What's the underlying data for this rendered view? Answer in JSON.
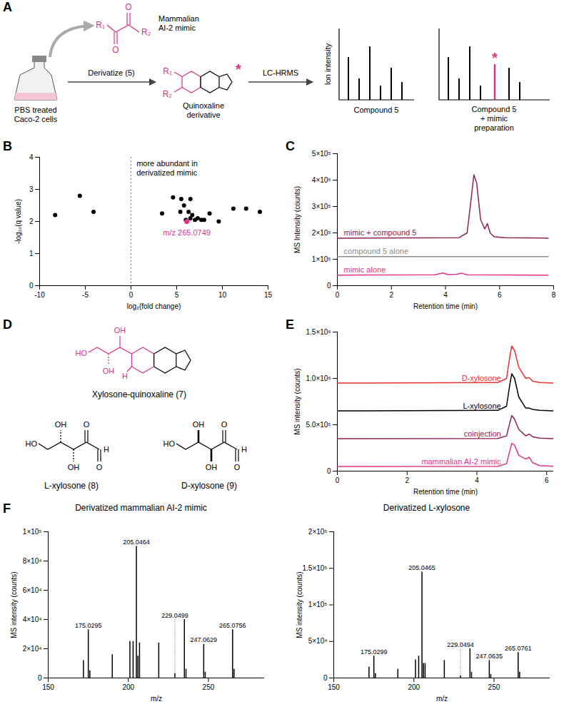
{
  "figure": {
    "schematic": {
      "panel": "A",
      "cells_label": "PBS treated Caco-2 cells",
      "mimic_label": "Mammalian AI-2 mimic",
      "mimic_groups": [
        "R₁",
        "R₂",
        "O",
        "O"
      ],
      "step1": "Derivatize (5)",
      "product_groups": [
        "R₁",
        "R₂"
      ],
      "product_mark": "*",
      "product_label": "Quinoxaline derivative",
      "step2": "LC-HRMS",
      "y_label": "Ion intensity",
      "spectrum1_label": "Compound 5",
      "spectrum2_label": "Compound 5 + mimic preparation",
      "spectrum2_mark": "*"
    },
    "structures": {
      "panel": "D",
      "molecules": [
        {
          "name": "Xylosone-quinoxaline (7)",
          "atom_labels": [
            "HO",
            "OH",
            "OH",
            "H"
          ]
        },
        {
          "name": "L-xylosone (8)",
          "atom_labels": [
            "HO",
            "OH",
            "OH",
            "O",
            "O",
            "H"
          ]
        },
        {
          "name": "D-xylosone (9)",
          "atom_labels": [
            "HO",
            "OH",
            "OH",
            "O",
            "O",
            "H"
          ]
        }
      ]
    }
  },
  "chart_data": [
    {
      "panel": "B",
      "type": "scatter",
      "x_label": "log₂(fold change)",
      "y_label": "-log₁₀(q value)",
      "xlim": [
        -10,
        15
      ],
      "ylim": [
        0,
        4
      ],
      "xticks": [
        -10,
        -5,
        0,
        5,
        10,
        15
      ],
      "yticks": [
        0,
        1,
        2,
        3,
        4
      ],
      "color": "#000000",
      "x": [
        -8.3,
        -5.6,
        -4.1,
        3.4,
        4.6,
        5.4,
        5.5,
        5.8,
        6.0,
        6.1,
        6.3,
        6.5,
        6.5,
        6.7,
        7.0,
        7.3,
        7.7,
        8.0,
        8.6,
        9.6,
        11.2,
        12.6,
        14.1
      ],
      "values": [
        2.2,
        2.8,
        2.3,
        2.25,
        2.75,
        2.3,
        2.7,
        2.5,
        2.05,
        2.0,
        2.3,
        2.1,
        2.7,
        2.2,
        2.05,
        2.1,
        2.05,
        2.05,
        2.25,
        2.0,
        2.4,
        2.4,
        2.3
      ],
      "vline": {
        "x": 0,
        "line_style": "dotted"
      },
      "annotation": {
        "text": "more abundant in derivatized mimic",
        "x": 0.6,
        "y": 3.8
      },
      "highlight": {
        "x": 6.1,
        "y": 2.0,
        "label": "m/z 265.0749",
        "color": "#e0338a"
      }
    },
    {
      "panel": "C",
      "type": "line",
      "x_label": "Retention time (min)",
      "y_label": "MS Intensity (counts)",
      "xlim": [
        0,
        8
      ],
      "ylim": [
        0,
        500000
      ],
      "xticks": [
        0,
        2,
        4,
        6,
        8
      ],
      "yticks": [
        0,
        {
          "value": 100000,
          "label": "1×10⁵"
        },
        {
          "value": 200000,
          "label": "2×10⁵"
        },
        {
          "value": 300000,
          "label": "3×10⁵"
        },
        {
          "value": 400000,
          "label": "4×10⁵"
        },
        {
          "value": 500000,
          "label": "5×10⁵"
        }
      ],
      "series": [
        {
          "name": "mimic + compound 5",
          "color": "#8b2252",
          "x": [
            0,
            4.5,
            4.8,
            4.95,
            5.05,
            5.15,
            5.3,
            5.45,
            5.55,
            5.65,
            5.8,
            6.2,
            7.8
          ],
          "values": [
            180000,
            182000,
            200000,
            330000,
            420000,
            390000,
            250000,
            215000,
            235000,
            200000,
            185000,
            182000,
            180000
          ]
        },
        {
          "name": "compound 5 alone",
          "color": "#8c8c8c",
          "x": [
            0,
            7.8
          ],
          "values": [
            110000,
            110000
          ]
        },
        {
          "name": "mimic alone",
          "color": "#e0338a",
          "x": [
            0,
            3.6,
            3.9,
            4.1,
            4.4,
            4.6,
            4.8,
            7.8
          ],
          "values": [
            40000,
            41000,
            48000,
            42000,
            43000,
            47000,
            41000,
            40000
          ]
        }
      ]
    },
    {
      "panel": "E",
      "type": "line",
      "x_label": "Retention time (min)",
      "y_label": "MS intensity (counts)",
      "xlim": [
        0,
        6.2
      ],
      "ylim": [
        0,
        1500000
      ],
      "xticks": [
        0,
        2,
        4,
        6
      ],
      "yticks": [
        0,
        {
          "value": 500000,
          "label": "5.0×10⁵"
        },
        {
          "value": 1000000,
          "label": "1.0×10⁶"
        },
        {
          "value": 1500000,
          "label": "1.5×10⁶"
        }
      ],
      "series": [
        {
          "name": "D-xylosone",
          "color": "#e8312f",
          "x": [
            0,
            4.6,
            4.85,
            4.95,
            5.0,
            5.08,
            5.2,
            5.4,
            5.5,
            5.6,
            5.8,
            6.2
          ],
          "values": [
            950000,
            955000,
            1000000,
            1250000,
            1350000,
            1300000,
            1120000,
            1000000,
            1010000,
            970000,
            955000,
            950000
          ]
        },
        {
          "name": "L-xylosone",
          "color": "#000000",
          "x": [
            0,
            4.6,
            4.85,
            4.95,
            5.0,
            5.08,
            5.2,
            5.4,
            5.5,
            5.6,
            5.8,
            6.2
          ],
          "values": [
            650000,
            655000,
            700000,
            950000,
            1050000,
            1000000,
            800000,
            680000,
            680000,
            665000,
            655000,
            650000
          ]
        },
        {
          "name": "coinjection",
          "color": "#8b2252",
          "x": [
            0,
            4.6,
            4.85,
            4.95,
            5.0,
            5.08,
            5.2,
            5.4,
            5.5,
            5.6,
            5.8,
            6.2
          ],
          "values": [
            350000,
            352000,
            380000,
            530000,
            600000,
            560000,
            450000,
            380000,
            400000,
            370000,
            355000,
            350000
          ]
        },
        {
          "name": "mammalian AI-2 mimic",
          "color": "#e0338a",
          "x": [
            0,
            4.6,
            4.85,
            4.95,
            5.0,
            5.08,
            5.2,
            5.4,
            5.5,
            5.6,
            5.8,
            6.2
          ],
          "values": [
            50000,
            52000,
            80000,
            230000,
            300000,
            280000,
            170000,
            130000,
            150000,
            90000,
            60000,
            52000
          ]
        }
      ]
    },
    {
      "panel": "F",
      "type": "bar",
      "title": "Derivatized mammalian AI-2 mimic",
      "x_label": "m/z",
      "y_label": "MS intensity (counts)",
      "xlim": [
        150,
        285
      ],
      "ylim": [
        0,
        100000
      ],
      "xticks": [
        150,
        200,
        250
      ],
      "yticks": [
        0,
        {
          "value": 20000,
          "label": "2×10⁴"
        },
        {
          "value": 40000,
          "label": "4×10⁴"
        },
        {
          "value": 60000,
          "label": "6×10⁴"
        },
        {
          "value": 80000,
          "label": "8×10⁴"
        },
        {
          "value": 100000,
          "label": "1×10⁵"
        }
      ],
      "color": "#000000",
      "x": [
        172.0,
        175.0295,
        176.0,
        190.0,
        201.0,
        203.0,
        205.0464,
        206.0,
        207.0,
        219.0,
        229.0499,
        235.0,
        236.0,
        247.0629,
        248.0,
        265.0756,
        266.0
      ],
      "values": [
        12000,
        33000,
        5000,
        16000,
        25000,
        25000,
        90000,
        15000,
        24000,
        24000,
        3000,
        40000,
        6000,
        23000,
        4000,
        33000,
        6000
      ],
      "peak_labels": [
        null,
        "175.0295",
        null,
        null,
        null,
        null,
        "205.0464",
        null,
        null,
        null,
        "229.0499",
        null,
        null,
        "247.0629",
        null,
        "265.0756",
        null
      ]
    },
    {
      "type": "bar",
      "title": "Derivatized L-xylosone",
      "x_label": "m/z",
      "y_label": "MS intensity (counts)",
      "xlim": [
        150,
        285
      ],
      "ylim": [
        0,
        200000
      ],
      "xticks": [
        150,
        200,
        250
      ],
      "yticks": [
        0,
        {
          "value": 50000,
          "label": "5×10⁴"
        },
        {
          "value": 100000,
          "label": "1×10⁵"
        },
        {
          "value": 150000,
          "label": "1.5×10⁵"
        },
        {
          "value": 200000,
          "label": "2×10⁵"
        }
      ],
      "color": "#000000",
      "x": [
        172.0,
        175.0299,
        176.0,
        190.0,
        201.0,
        203.0,
        205.0465,
        206.0,
        207.0,
        219.0,
        229.0494,
        235.0,
        236.0,
        247.0635,
        248.0,
        265.0761,
        266.0
      ],
      "values": [
        15000,
        30000,
        6000,
        12000,
        25000,
        30000,
        145000,
        20000,
        20000,
        24000,
        3000,
        40000,
        8000,
        24000,
        5000,
        35000,
        8000
      ],
      "peak_labels": [
        null,
        "175.0299",
        null,
        null,
        null,
        null,
        "205.0465",
        null,
        null,
        null,
        "229.0494",
        null,
        null,
        "247.0635",
        null,
        "265.0761",
        null
      ]
    }
  ]
}
